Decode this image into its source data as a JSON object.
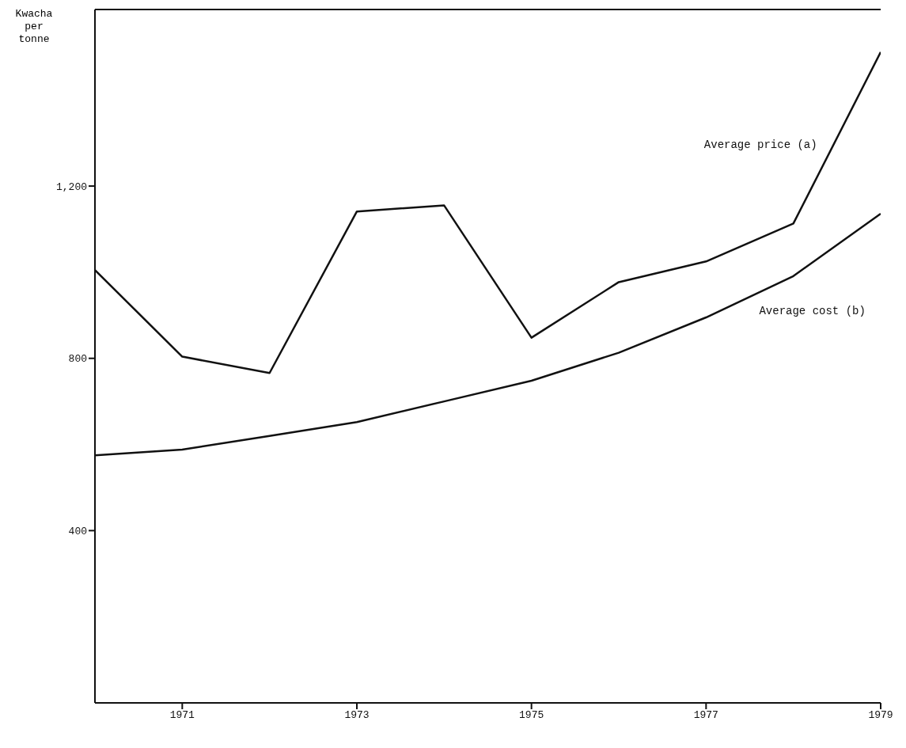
{
  "chart_data": {
    "type": "line",
    "ylabel": "Kwacha per tonne",
    "x": [
      1970,
      1971,
      1972,
      1973,
      1974,
      1975,
      1976,
      1977,
      1978,
      1979
    ],
    "series": [
      {
        "name": "Average price (a)",
        "color": "#111111",
        "values": [
          1005,
          804,
          766,
          1141,
          1155,
          848,
          977,
          1025,
          1113,
          1511
        ]
      },
      {
        "name": "Average cost (b)",
        "color": "#111111",
        "values": [
          575,
          588,
          620,
          652,
          700,
          748,
          813,
          895,
          991,
          1136
        ]
      }
    ],
    "xlim": [
      1970,
      1979
    ],
    "xticks": [
      1971,
      1973,
      1975,
      1977,
      1979
    ],
    "ylim": [
      0,
      1610
    ],
    "yticks": [
      400,
      800,
      {
        "value": 1200,
        "label": "1,200"
      }
    ],
    "grid": false,
    "marker": "none",
    "line_style": "solid"
  }
}
